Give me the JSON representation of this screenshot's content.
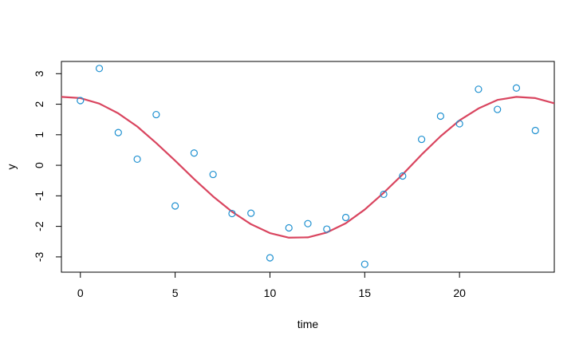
{
  "chart_data": {
    "type": "scatter",
    "title": "",
    "xlabel": "time",
    "ylabel": "y",
    "xlim": [
      -1,
      25
    ],
    "ylim": [
      -3.5,
      3.4
    ],
    "xticks": [
      0,
      5,
      10,
      15,
      20
    ],
    "yticks": [
      -3,
      -2,
      -1,
      0,
      1,
      2,
      3
    ],
    "grid": false,
    "legend": "none",
    "series": [
      {
        "type": "scatter",
        "color": "#1e90d0",
        "x": [
          0,
          1,
          2,
          3,
          4,
          5,
          6,
          7,
          8,
          9,
          10,
          11,
          12,
          13,
          14,
          15,
          16,
          17,
          18,
          19,
          20,
          21,
          22,
          23,
          24
        ],
        "y": [
          2.12,
          3.17,
          1.07,
          0.2,
          1.66,
          -1.33,
          0.4,
          -0.3,
          -1.58,
          -1.57,
          -3.03,
          -2.05,
          -1.91,
          -2.09,
          -1.71,
          -3.24,
          -0.95,
          -0.35,
          0.85,
          1.61,
          1.36,
          2.49,
          1.83,
          2.53,
          1.14
        ]
      },
      {
        "type": "line",
        "color": "#d9455f",
        "x": [
          -1,
          0,
          1,
          2,
          3,
          4,
          5,
          6,
          7,
          8,
          9,
          10,
          11,
          12,
          13,
          14,
          15,
          16,
          17,
          18,
          19,
          20,
          21,
          22,
          23,
          24,
          25
        ],
        "y": [
          2.24,
          2.2,
          2.02,
          1.7,
          1.27,
          0.73,
          0.15,
          -0.45,
          -1.02,
          -1.52,
          -1.93,
          -2.22,
          -2.37,
          -2.36,
          -2.2,
          -1.9,
          -1.45,
          -0.9,
          -0.3,
          0.35,
          0.95,
          1.47,
          1.86,
          2.14,
          2.24,
          2.2,
          2.03
        ]
      }
    ]
  }
}
